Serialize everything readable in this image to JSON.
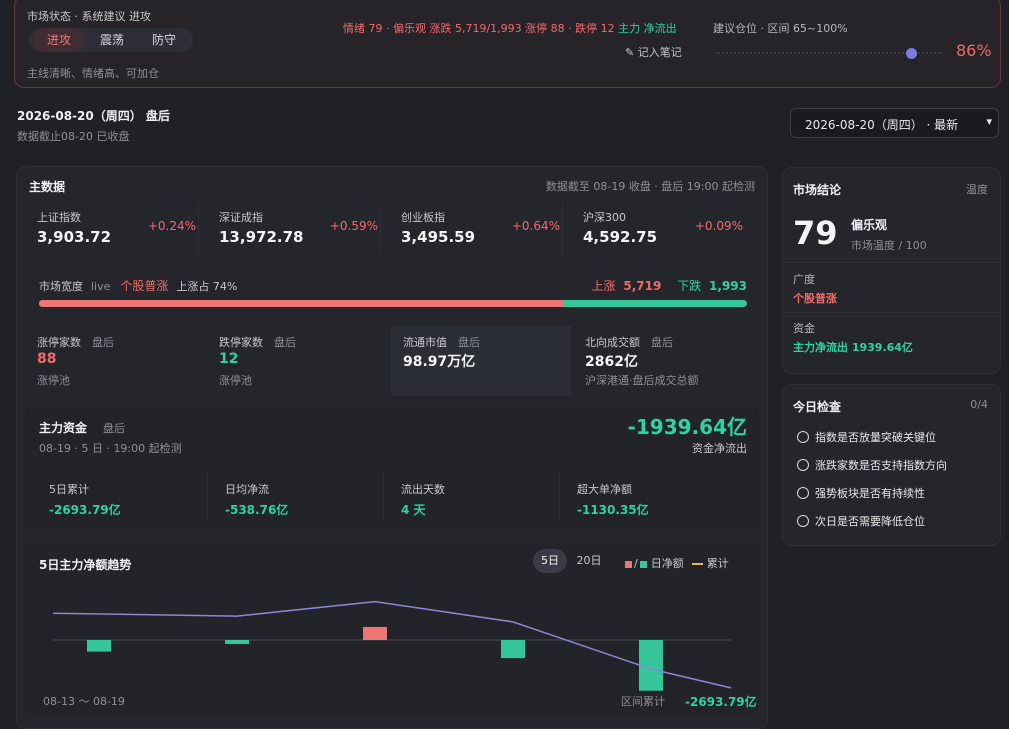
{
  "status": {
    "title": "市场状态 · 系统建议 进攻",
    "modes": [
      "进攻",
      "震荡",
      "防守"
    ],
    "active_mode": 0,
    "description": "主线清晰、情绪高、可加仓",
    "sentiment_parts": [
      {
        "text": "情绪 79 · 偏乐观  涨跌 5,719/1,993  涨停 88 · 跌停 12  ",
        "color": "#f06a6a"
      },
      {
        "text": "主力 净流出",
        "color": "#2ed3a0"
      }
    ],
    "note_button": "记入笔记",
    "position_label": "建议仓位 · 区间 65~100%",
    "position_pct": "86%",
    "position_value": 0.86
  },
  "date": {
    "title": "2026-08-20（周四） 盘后",
    "subtitle": "数据截止08-20 已收盘",
    "select_value": "2026-08-20（周四） · 最新"
  },
  "main": {
    "title": "主数据",
    "note": "数据截至 08-19 收盘 · 盘后 19:00 起检测",
    "indices": [
      {
        "name": "上证指数",
        "value": "3,903.72",
        "change": "+0.24%"
      },
      {
        "name": "深证成指",
        "value": "13,972.78",
        "change": "+0.59%"
      },
      {
        "name": "创业板指",
        "value": "3,495.59",
        "change": "+0.64%"
      },
      {
        "name": "沪深300",
        "value": "4,592.75",
        "change": "+0.09%"
      }
    ],
    "breadth": {
      "label": "市场宽度",
      "live": "live",
      "state": "个股普涨",
      "ratio": "上涨占 74%",
      "up_label": "上涨",
      "up": "5,719",
      "down_label": "下跌",
      "down": "1,993",
      "up_fraction": 0.74
    },
    "stats": [
      {
        "name": "涨停家数",
        "tag": "盘后",
        "value": "88",
        "sub": "涨停池",
        "color": "#f06a6a"
      },
      {
        "name": "跌停家数",
        "tag": "盘后",
        "value": "12",
        "sub": "涨停池",
        "color": "#2ed3a0"
      },
      {
        "name": "流通市值",
        "tag": "盘后",
        "value": "98.97万亿",
        "sub": "",
        "color": "#f4f4f6"
      },
      {
        "name": "北向成交额",
        "tag": "盘后",
        "value": "2862亿",
        "sub": "沪深港通·盘后成交总额",
        "color": "#f4f4f6"
      }
    ]
  },
  "fund": {
    "title": "主力资金",
    "tag": "盘后",
    "meta": "08-19 · 5 日 · 19:00 起检测",
    "total": "-1939.64亿",
    "total_label": "资金净流出",
    "cells": [
      {
        "name": "5日累计",
        "value": "-2693.79亿"
      },
      {
        "name": "日均净流",
        "value": "-538.76亿"
      },
      {
        "name": "流出天数",
        "value": "4 天"
      },
      {
        "name": "超大单净额",
        "value": "-1130.35亿"
      }
    ]
  },
  "trend": {
    "title": "5日主力净额趋势",
    "ranges": [
      "5日",
      "20日"
    ],
    "active_range": 0,
    "legend_daily": "日净额",
    "legend_cum": "累计",
    "legend_sep": "/",
    "range_text": "08-13 ～ 08-19",
    "sum_label": "区间累计",
    "sum_value": "-2693.79亿",
    "colors": {
      "up": "#ef7474",
      "down": "#35c699",
      "line": "#8b86d6"
    }
  },
  "chart_data": {
    "type": "bar",
    "series": [
      {
        "name": "日净额",
        "values": [
          -160,
          -55,
          180,
          -250,
          -700
        ]
      },
      {
        "name": "累计",
        "values": [
          370,
          330,
          530,
          250,
          -400
        ]
      }
    ],
    "grid": false
  },
  "conclusion": {
    "title": "市场结论",
    "tag": "温度",
    "score": "79",
    "mood": "偏乐观",
    "temp": "市场温度 / 100",
    "items": [
      {
        "k": "广度",
        "v": "个股普涨",
        "color": "#f06a6a"
      },
      {
        "k": "资金",
        "v": "主力净流出 1939.64亿",
        "color": "#2ed3a0"
      }
    ]
  },
  "checklist": {
    "title": "今日检查",
    "count": "0/4",
    "items": [
      "指数是否放量突破关键位",
      "涨跌家数是否支持指数方向",
      "强势板块是否有持续性",
      "次日是否需要降低仓位"
    ]
  }
}
